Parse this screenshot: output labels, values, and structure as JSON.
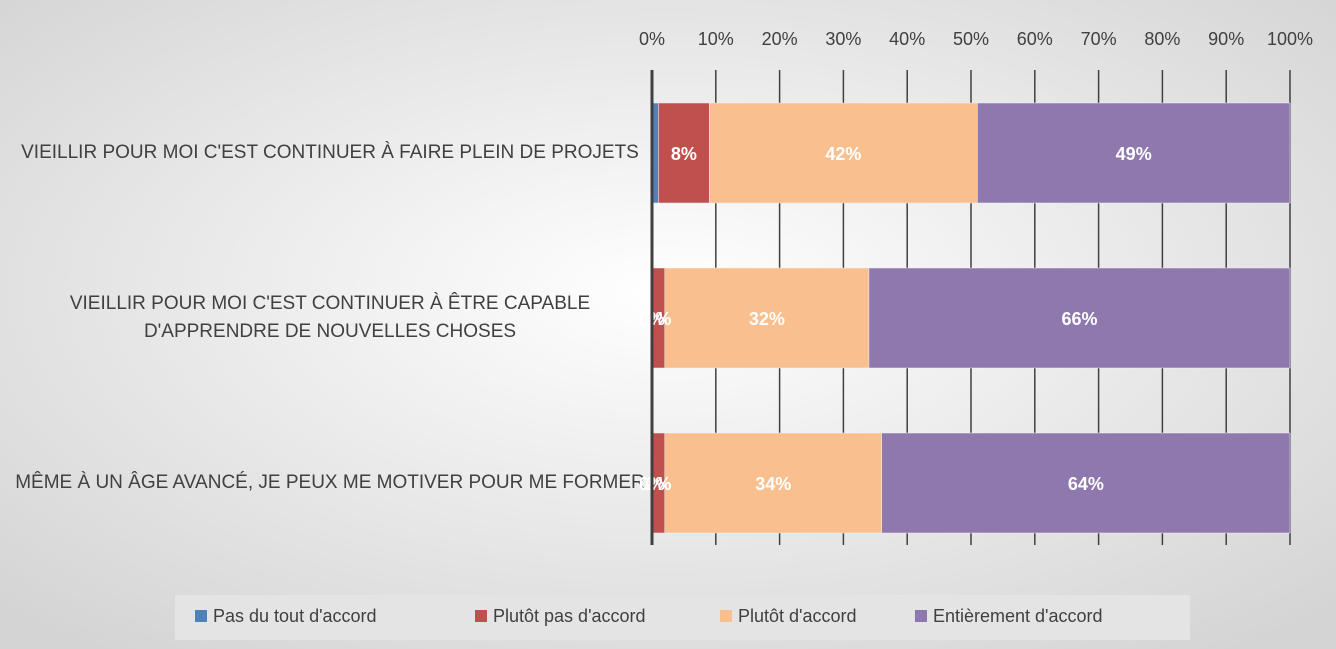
{
  "chart_data": {
    "type": "stacked-bar-horizontal",
    "categories": [
      "VIEILLIR POUR MOI C'EST CONTINUER À FAIRE PLEIN DE PROJETS",
      "VIEILLIR POUR MOI C'EST CONTINUER À ÊTRE CAPABLE D'APPRENDRE DE NOUVELLES CHOSES",
      "MÊME À UN ÂGE AVANCÉ, JE PEUX ME MOTIVER POUR ME FORMER"
    ],
    "series": [
      {
        "name": "Pas du tout d'accord",
        "color": "#4f81bd",
        "values": [
          1,
          0,
          0
        ],
        "value_labels": [
          null,
          "0%",
          "0%"
        ]
      },
      {
        "name": "Plutôt pas d'accord",
        "color": "#c0504d",
        "values": [
          8,
          2,
          2
        ],
        "value_labels": [
          "8%",
          "2%",
          "2%"
        ]
      },
      {
        "name": "Plutôt d'accord",
        "color": "#f9bf8f",
        "values": [
          42,
          32,
          34
        ],
        "value_labels": [
          "42%",
          "32%",
          "34%"
        ]
      },
      {
        "name": "Entièrement d'accord",
        "color": "#8e78ae",
        "values": [
          49,
          66,
          64
        ],
        "value_labels": [
          "49%",
          "66%",
          "64%"
        ]
      }
    ],
    "xlim": [
      0,
      100
    ],
    "xticks": [
      {
        "value": 0,
        "label": "0%"
      },
      {
        "value": 10,
        "label": "10%"
      },
      {
        "value": 20,
        "label": "20%"
      },
      {
        "value": 30,
        "label": "30%"
      },
      {
        "value": 40,
        "label": "40%"
      },
      {
        "value": 50,
        "label": "50%"
      },
      {
        "value": 60,
        "label": "60%"
      },
      {
        "value": 70,
        "label": "70%"
      },
      {
        "value": 80,
        "label": "80%"
      },
      {
        "value": 90,
        "label": "90%"
      },
      {
        "value": 100,
        "label": "100%"
      }
    ],
    "grid": true,
    "legend": "bottom"
  }
}
